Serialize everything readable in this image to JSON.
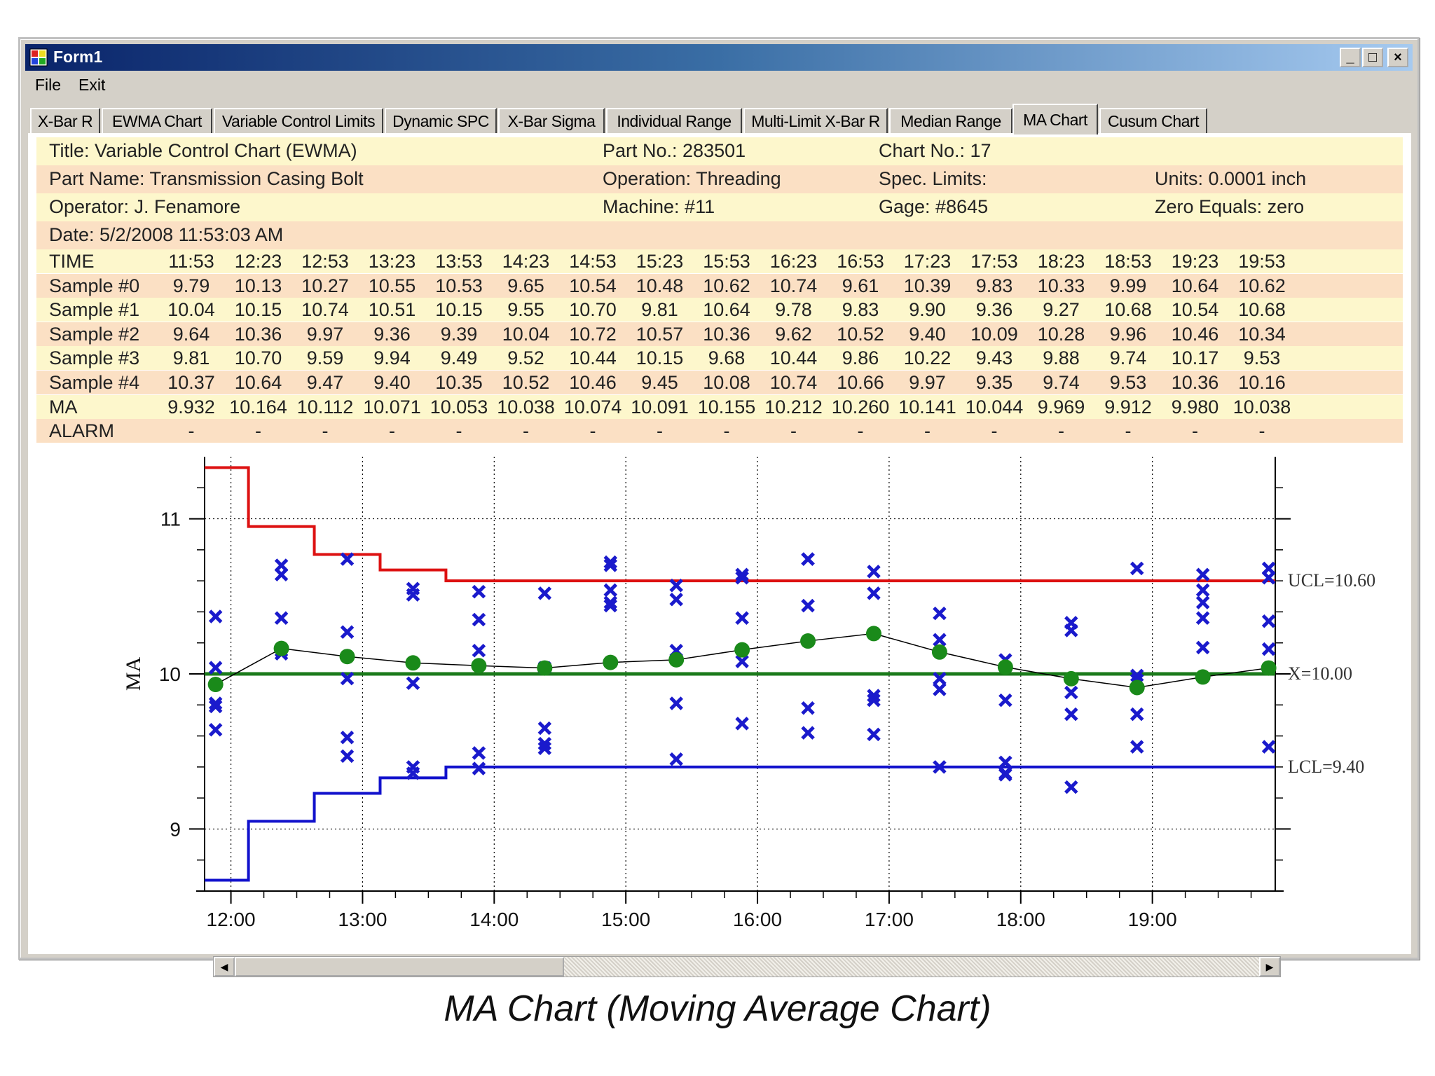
{
  "window": {
    "title": "Form1",
    "controls": {
      "minimize": "_",
      "maximize": "□",
      "close": "×"
    }
  },
  "menu": {
    "items": [
      "File",
      "Exit"
    ]
  },
  "tabs": {
    "items": [
      "X-Bar R",
      "EWMA Chart",
      "Variable Control Limits",
      "Dynamic SPC",
      "X-Bar Sigma",
      "Individual Range",
      "Multi-Limit X-Bar R",
      "Median Range",
      "MA Chart",
      "Cusum Chart"
    ],
    "active": "MA Chart"
  },
  "header": {
    "title": "Title: Variable Control Chart (EWMA)",
    "part_no": "Part No.: 283501",
    "chart_no": "Chart No.: 17",
    "part_name": "Part Name: Transmission Casing Bolt",
    "operation": "Operation: Threading",
    "spec_limits": "Spec. Limits:",
    "units": "Units: 0.0001 inch",
    "operator": "Operator: J. Fenamore",
    "machine": "Machine: #11",
    "gage": "Gage: #8645",
    "zero_equals": "Zero Equals: zero",
    "date": "Date: 5/2/2008 11:53:03 AM"
  },
  "table": {
    "rows": [
      {
        "label": "TIME",
        "values": [
          "11:53",
          "12:23",
          "12:53",
          "13:23",
          "13:53",
          "14:23",
          "14:53",
          "15:23",
          "15:53",
          "16:23",
          "16:53",
          "17:23",
          "17:53",
          "18:23",
          "18:53",
          "19:23",
          "19:53"
        ]
      },
      {
        "label": "Sample #0",
        "values": [
          "9.79",
          "10.13",
          "10.27",
          "10.55",
          "10.53",
          "9.65",
          "10.54",
          "10.48",
          "10.62",
          "10.74",
          "9.61",
          "10.39",
          "9.83",
          "10.33",
          "9.99",
          "10.64",
          "10.62"
        ]
      },
      {
        "label": "Sample #1",
        "values": [
          "10.04",
          "10.15",
          "10.74",
          "10.51",
          "10.15",
          "9.55",
          "10.70",
          "9.81",
          "10.64",
          "9.78",
          "9.83",
          "9.90",
          "9.36",
          "9.27",
          "10.68",
          "10.54",
          "10.68"
        ]
      },
      {
        "label": "Sample #2",
        "values": [
          "9.64",
          "10.36",
          "9.97",
          "9.36",
          "9.39",
          "10.04",
          "10.72",
          "10.57",
          "10.36",
          "9.62",
          "10.52",
          "9.40",
          "10.09",
          "10.28",
          "9.96",
          "10.46",
          "10.34"
        ]
      },
      {
        "label": "Sample #3",
        "values": [
          "9.81",
          "10.70",
          "9.59",
          "9.94",
          "9.49",
          "9.52",
          "10.44",
          "10.15",
          "9.68",
          "10.44",
          "9.86",
          "10.22",
          "9.43",
          "9.88",
          "9.74",
          "10.17",
          "9.53"
        ]
      },
      {
        "label": "Sample #4",
        "values": [
          "10.37",
          "10.64",
          "9.47",
          "9.40",
          "10.35",
          "10.52",
          "10.46",
          "9.45",
          "10.08",
          "10.74",
          "10.66",
          "9.97",
          "9.35",
          "9.74",
          "9.53",
          "10.36",
          "10.16"
        ]
      },
      {
        "label": "MA",
        "values": [
          "9.932",
          "10.164",
          "10.112",
          "10.071",
          "10.053",
          "10.038",
          "10.074",
          "10.091",
          "10.155",
          "10.212",
          "10.260",
          "10.141",
          "10.044",
          "9.969",
          "9.912",
          "9.980",
          "10.038"
        ]
      },
      {
        "label": "ALARM",
        "values": [
          "-",
          "-",
          "-",
          "-",
          "-",
          "-",
          "-",
          "-",
          "-",
          "-",
          "-",
          "-",
          "-",
          "-",
          "-",
          "-",
          "-"
        ]
      }
    ]
  },
  "chart_data": {
    "type": "line",
    "ylabel": "MA",
    "ylim": [
      8.6,
      11.4
    ],
    "yticks": [
      9,
      10,
      11
    ],
    "xticks": [
      "12:00",
      "13:00",
      "14:00",
      "15:00",
      "16:00",
      "17:00",
      "18:00",
      "19:00"
    ],
    "x_minutes": [
      713,
      743,
      773,
      803,
      833,
      863,
      893,
      923,
      953,
      983,
      1013,
      1043,
      1073,
      1103,
      1133,
      1163,
      1193
    ],
    "xlim_minutes": [
      708,
      1196
    ],
    "xtick_minutes": [
      720,
      780,
      840,
      900,
      960,
      1020,
      1080,
      1140
    ],
    "grid": true,
    "center": {
      "label": "X=10.00",
      "value": 10.0,
      "color": "#1a7a1a"
    },
    "ucl": {
      "label": "UCL=10.60",
      "final": 10.6,
      "color": "#dd1111",
      "steps": [
        11.33,
        10.95,
        10.77,
        10.67,
        10.6,
        10.6,
        10.6,
        10.6,
        10.6,
        10.6,
        10.6,
        10.6,
        10.6,
        10.6,
        10.6,
        10.6,
        10.6
      ]
    },
    "lcl": {
      "label": "LCL=9.40",
      "final": 9.4,
      "color": "#1111cc",
      "steps": [
        8.67,
        9.05,
        9.23,
        9.33,
        9.4,
        9.4,
        9.4,
        9.4,
        9.4,
        9.4,
        9.4,
        9.4,
        9.4,
        9.4,
        9.4,
        9.4,
        9.4
      ]
    },
    "ma_color": "#1a8a1a",
    "sample_color": "#1a1acc"
  },
  "caption": "MA Chart (Moving Average  Chart)"
}
